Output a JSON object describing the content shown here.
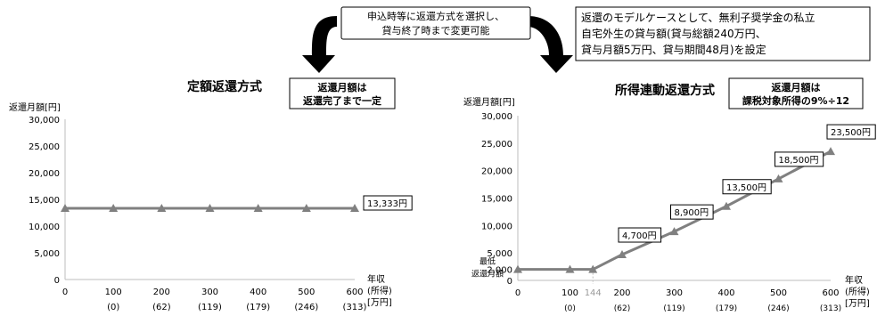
{
  "callouts": {
    "choice": [
      "申込時等に返還方式を選択し、",
      "貸与終了時まで変更可能"
    ],
    "model_case": [
      "返還のモデルケースとして、無利子奨学金の私立",
      "自宅外生の貸与額(貸与総額240万円、",
      "貸与月額5万円、貸与期間48月)を設定"
    ]
  },
  "chart_data": [
    {
      "type": "line",
      "title": "定額返還方式",
      "note": [
        "返還月額は",
        "返還完了まで一定"
      ],
      "ylabel": "返還月額[円]",
      "xlabel": [
        "年収",
        "(所得)",
        "[万円]"
      ],
      "ylim": [
        0,
        30000
      ],
      "yticks": [
        "0",
        "5,000",
        "10,000",
        "15,000",
        "20,000",
        "25,000",
        "30,000"
      ],
      "ytick_values": [
        0,
        5000,
        10000,
        15000,
        20000,
        25000,
        30000
      ],
      "xlim": [
        0,
        600
      ],
      "x_categories": [
        {
          "x": 0,
          "income": "0",
          "sub": ""
        },
        {
          "x": 100,
          "income": "100",
          "sub": "(0)"
        },
        {
          "x": 200,
          "income": "200",
          "sub": "(62)"
        },
        {
          "x": 300,
          "income": "300",
          "sub": "(119)"
        },
        {
          "x": 400,
          "income": "400",
          "sub": "(179)"
        },
        {
          "x": 500,
          "income": "500",
          "sub": "(246)"
        },
        {
          "x": 600,
          "income": "600",
          "sub": "(313)"
        }
      ],
      "series": [
        {
          "x": [
            0,
            100,
            200,
            300,
            400,
            500,
            600
          ],
          "values": [
            13333,
            13333,
            13333,
            13333,
            13333,
            13333,
            13333
          ],
          "color": "#808080"
        }
      ],
      "data_labels": [
        {
          "x": 600,
          "y": 13333,
          "text": "13,333円"
        }
      ],
      "grid": false
    },
    {
      "type": "line",
      "title": "所得連動返還方式",
      "note": [
        "返還月額は",
        "課税対象所得の9%÷12"
      ],
      "ylabel": "返還月額[円]",
      "xlabel": [
        "年収",
        "(所得)",
        "[万円]"
      ],
      "ylim": [
        0,
        30000
      ],
      "yticks": [
        "0",
        "2,000",
        "5,000",
        "10,000",
        "15,000",
        "20,000",
        "25,000",
        "30,000"
      ],
      "ytick_values": [
        0,
        2000,
        5000,
        10000,
        15000,
        20000,
        25000,
        30000
      ],
      "min_label": [
        "最低",
        "返還月額"
      ],
      "xlim": [
        0,
        600
      ],
      "x_categories": [
        {
          "x": 0,
          "income": "0",
          "sub": ""
        },
        {
          "x": 100,
          "income": "100",
          "sub": "(0)"
        },
        {
          "x": 200,
          "income": "200",
          "sub": "(62)"
        },
        {
          "x": 300,
          "income": "300",
          "sub": "(119)"
        },
        {
          "x": 400,
          "income": "400",
          "sub": "(179)"
        },
        {
          "x": 500,
          "income": "500",
          "sub": "(246)"
        },
        {
          "x": 600,
          "income": "600",
          "sub": "(313)"
        }
      ],
      "threshold": {
        "x": 144,
        "label": "144"
      },
      "series": [
        {
          "x": [
            0,
            100,
            144,
            200,
            300,
            400,
            500,
            600
          ],
          "values": [
            2000,
            2000,
            2000,
            4700,
            8900,
            13500,
            18500,
            23500
          ],
          "color": "#808080"
        }
      ],
      "data_labels": [
        {
          "x": 200,
          "y": 4700,
          "text": "4,700円"
        },
        {
          "x": 300,
          "y": 8900,
          "text": "8,900円"
        },
        {
          "x": 400,
          "y": 13500,
          "text": "13,500円"
        },
        {
          "x": 500,
          "y": 18500,
          "text": "18,500円"
        },
        {
          "x": 600,
          "y": 23500,
          "text": "23,500円"
        }
      ],
      "grid": false
    }
  ]
}
